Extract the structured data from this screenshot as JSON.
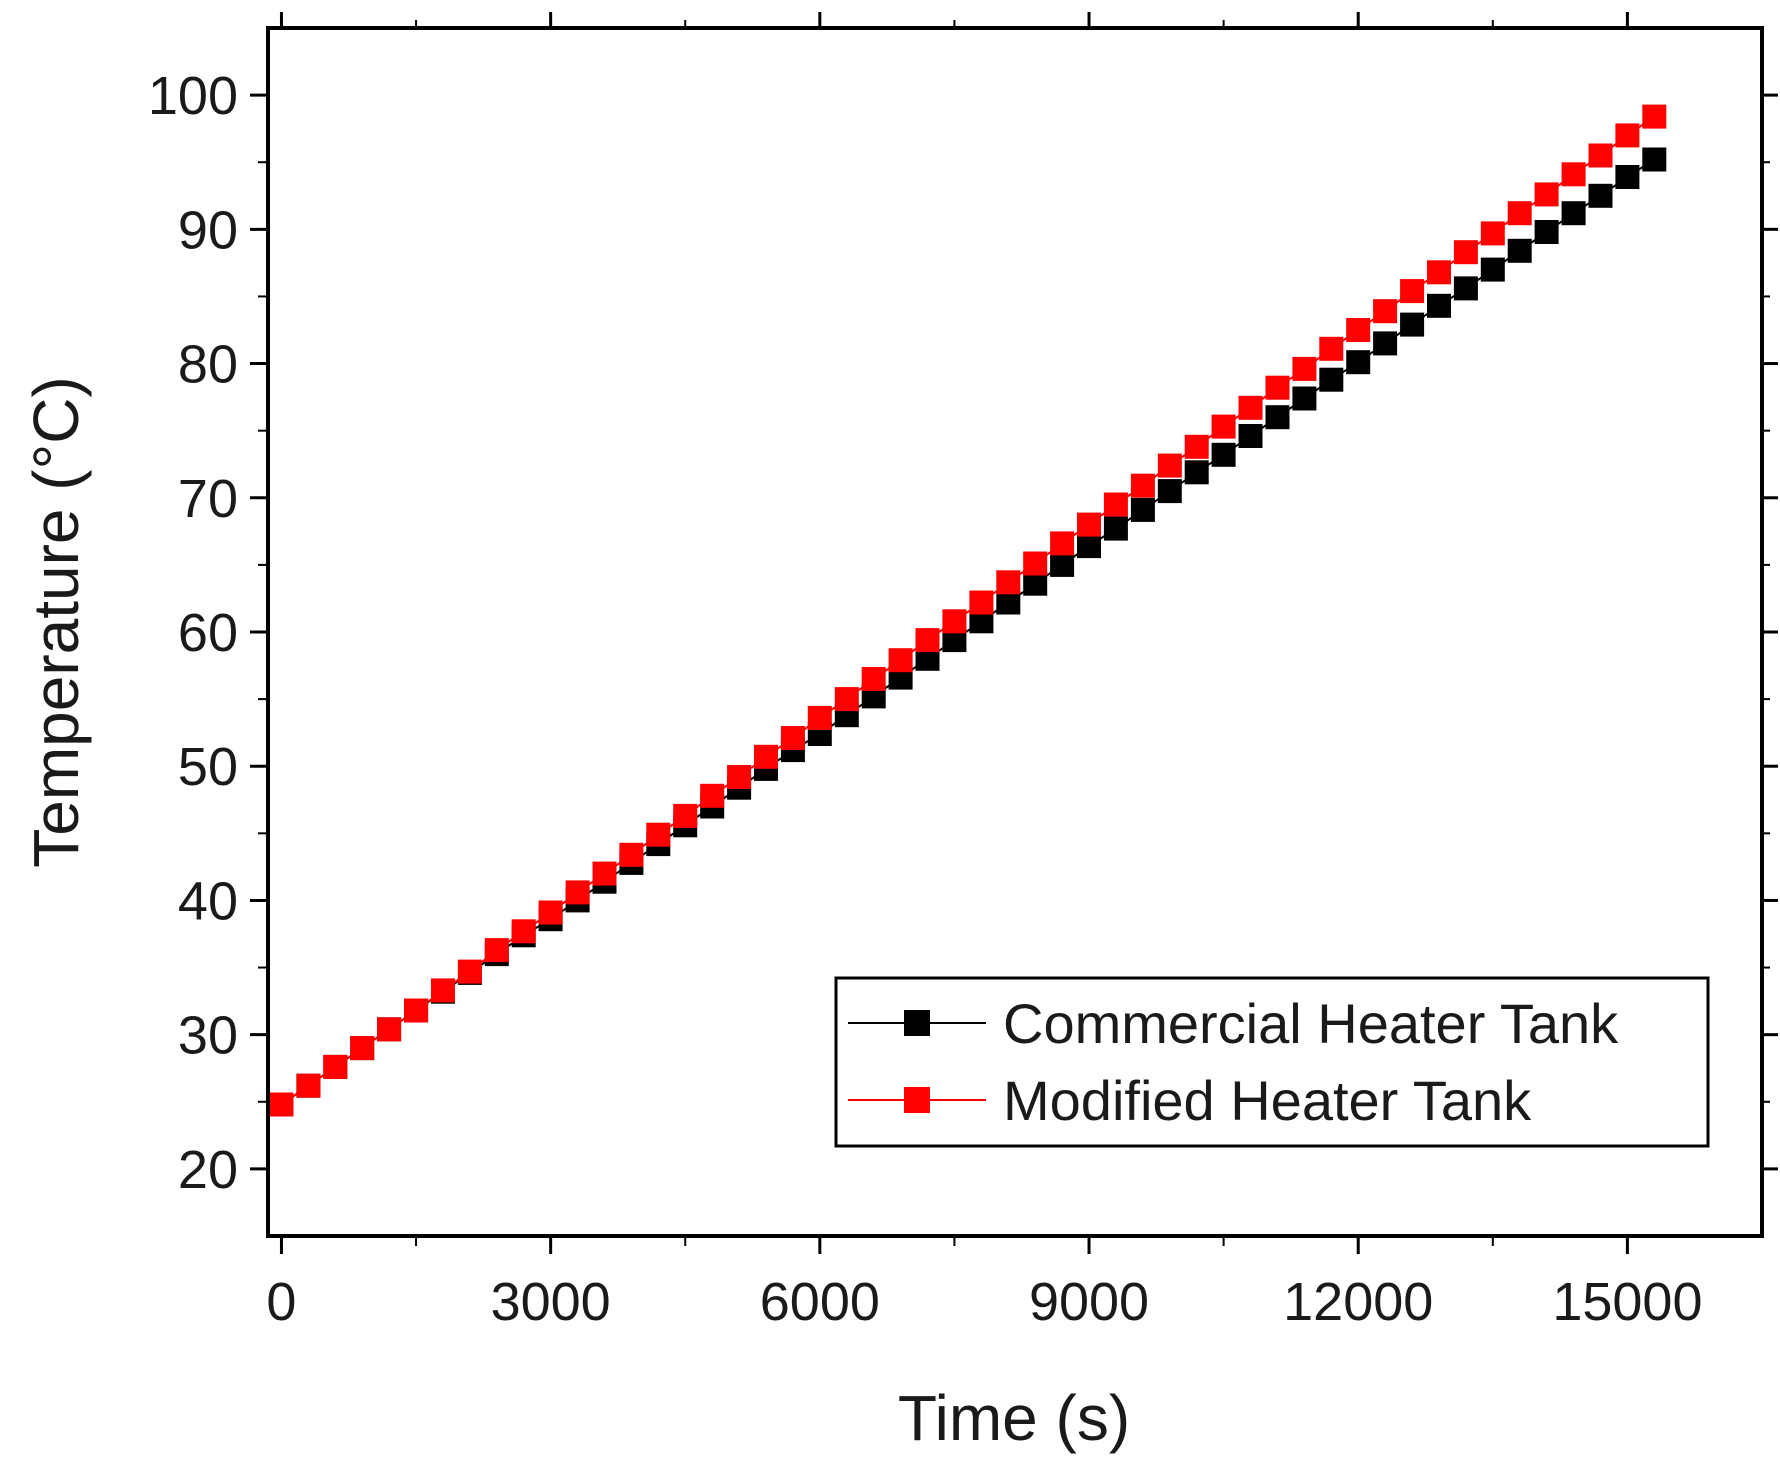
{
  "chart_data": {
    "type": "line",
    "title": "",
    "xlabel": "Time (s)",
    "ylabel": "Temperature (°C)",
    "xlim": [
      -150,
      16500
    ],
    "ylim": [
      15,
      105
    ],
    "grid": false,
    "legend_position": "bottom-right",
    "x_ticks": [
      0,
      3000,
      6000,
      9000,
      12000,
      15000
    ],
    "x_tick_labels": [
      "0",
      "3000",
      "6000",
      "9000",
      "12000",
      "15000"
    ],
    "y_ticks": [
      20,
      30,
      40,
      50,
      60,
      70,
      80,
      90,
      100
    ],
    "y_tick_labels": [
      "20",
      "30",
      "40",
      "50",
      "60",
      "70",
      "80",
      "90",
      "100"
    ],
    "x_minor_step": 1500,
    "y_minor_step": 5,
    "x": [
      0,
      300,
      600,
      900,
      1200,
      1500,
      1800,
      2100,
      2400,
      2700,
      3000,
      3300,
      3600,
      3900,
      4200,
      4500,
      4800,
      5100,
      5400,
      5700,
      6000,
      6300,
      6600,
      6900,
      7200,
      7500,
      7800,
      8100,
      8400,
      8700,
      9000,
      9300,
      9600,
      9900,
      10200,
      10500,
      10800,
      11100,
      11400,
      11700,
      12000,
      12300,
      12600,
      12900,
      13200,
      13500,
      13800,
      14100,
      14400,
      14700,
      15000,
      15300
    ],
    "series": [
      {
        "name": "Commercial Heater Tank",
        "color": "#000000",
        "marker": "square",
        "values": [
          24.8,
          26.2,
          27.6,
          29.0,
          30.4,
          31.8,
          33.2,
          34.6,
          36.0,
          37.4,
          38.6,
          40.0,
          41.4,
          42.8,
          44.2,
          45.6,
          47.0,
          48.4,
          49.8,
          51.2,
          52.4,
          53.8,
          55.2,
          56.6,
          58.0,
          59.4,
          60.8,
          62.2,
          63.6,
          65.0,
          66.4,
          67.7,
          69.1,
          70.5,
          71.9,
          73.2,
          74.6,
          76.0,
          77.4,
          78.8,
          80.1,
          81.5,
          82.9,
          84.3,
          85.6,
          87.0,
          88.4,
          89.8,
          91.2,
          92.5,
          93.9,
          95.2
        ]
      },
      {
        "name": "Modified Heater Tank",
        "color": "#ff0000",
        "marker": "square",
        "values": [
          24.8,
          26.2,
          27.6,
          29.0,
          30.4,
          31.8,
          33.3,
          34.7,
          36.3,
          37.7,
          39.1,
          40.6,
          42.0,
          43.4,
          44.9,
          46.3,
          47.8,
          49.2,
          50.7,
          52.1,
          53.6,
          55.0,
          56.5,
          57.9,
          59.4,
          60.8,
          62.2,
          63.7,
          65.1,
          66.6,
          68.0,
          69.5,
          70.9,
          72.4,
          73.8,
          75.3,
          76.7,
          78.2,
          79.6,
          81.1,
          82.5,
          83.9,
          85.4,
          86.8,
          88.3,
          89.7,
          91.2,
          92.6,
          94.1,
          95.5,
          97.0,
          98.4
        ]
      }
    ]
  }
}
